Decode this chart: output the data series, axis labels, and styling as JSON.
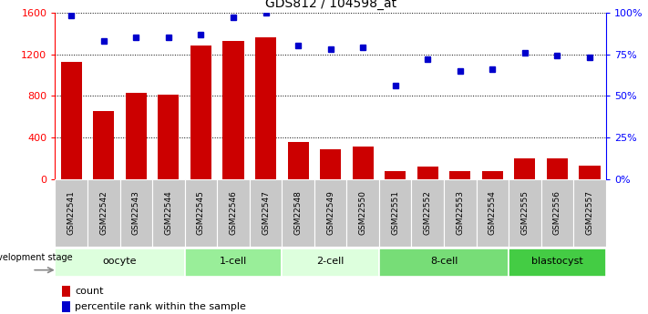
{
  "title": "GDS812 / 104598_at",
  "categories": [
    "GSM22541",
    "GSM22542",
    "GSM22543",
    "GSM22544",
    "GSM22545",
    "GSM22546",
    "GSM22547",
    "GSM22548",
    "GSM22549",
    "GSM22550",
    "GSM22551",
    "GSM22552",
    "GSM22553",
    "GSM22554",
    "GSM22555",
    "GSM22556",
    "GSM22557"
  ],
  "counts": [
    1130,
    650,
    830,
    810,
    1280,
    1330,
    1360,
    360,
    290,
    310,
    75,
    120,
    80,
    80,
    200,
    200,
    130
  ],
  "percentiles": [
    98,
    83,
    85,
    85,
    87,
    97,
    100,
    80,
    78,
    79,
    56,
    72,
    65,
    66,
    76,
    74,
    73
  ],
  "bar_color": "#cc0000",
  "dot_color": "#0000cc",
  "ylim_left": [
    0,
    1600
  ],
  "ylim_right": [
    0,
    100
  ],
  "yticks_left": [
    0,
    400,
    800,
    1200,
    1600
  ],
  "ytick_labels_right": [
    "0%",
    "25%",
    "50%",
    "75%",
    "100%"
  ],
  "yticks_right_vals": [
    0,
    25,
    50,
    75,
    100
  ],
  "stages": [
    {
      "label": "oocyte",
      "start": 0,
      "end": 4,
      "color": "#ddffdd"
    },
    {
      "label": "1-cell",
      "start": 4,
      "end": 7,
      "color": "#99ee99"
    },
    {
      "label": "2-cell",
      "start": 7,
      "end": 10,
      "color": "#ddffdd"
    },
    {
      "label": "8-cell",
      "start": 10,
      "end": 14,
      "color": "#77dd77"
    },
    {
      "label": "blastocyst",
      "start": 14,
      "end": 17,
      "color": "#44cc44"
    }
  ],
  "legend_count_label": "count",
  "legend_pct_label": "percentile rank within the sample",
  "dev_stage_label": "development stage",
  "tick_bg_color": "#c8c8c8"
}
